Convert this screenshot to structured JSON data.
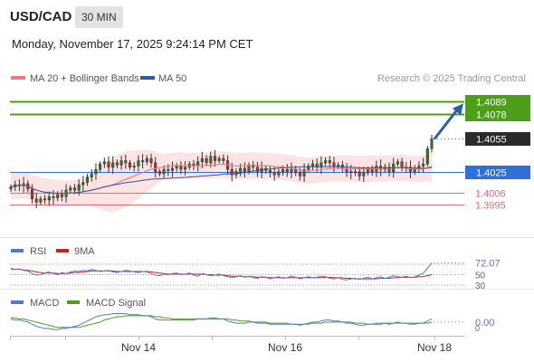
{
  "header": {
    "symbol": "USD/CAD",
    "timeframe": "30 MIN",
    "datetime": "Monday, November 17, 2025 9:24:14 PM CET"
  },
  "legend": {
    "ma20_label": "MA 20 + Bollinger Bands",
    "ma50_label": "MA 50",
    "credit": "Research © 2025 Trading Central"
  },
  "colors": {
    "resistance": "#4d9e1a",
    "pivot": "#2f6fd6",
    "support": "#e86a72",
    "current": "#2b2b2b",
    "arrow": "#2a5fa8",
    "candle_up": "#2a7a2a",
    "candle_down": "#c62828",
    "ma20": "#e88080",
    "ma50": "#2f5b9a",
    "rsi": "#5577cc",
    "rsi_ma": "#cc2020",
    "macd": "#5577cc",
    "macd_signal": "#4d9e1a"
  },
  "chart_data": [
    {
      "type": "candlestick",
      "ylim": [
        1.3975,
        1.4095
      ],
      "current_price": 1.4055,
      "levels": [
        {
          "value": 1.4089,
          "label": "1.4089",
          "kind": "resistance"
        },
        {
          "value": 1.4078,
          "label": "1.4078",
          "kind": "resistance"
        },
        {
          "value": 1.4025,
          "label": "1.4025",
          "kind": "pivot"
        },
        {
          "value": 1.4006,
          "label": "1.4006",
          "kind": "support"
        },
        {
          "value": 1.3995,
          "label": "1.3995",
          "kind": "support"
        }
      ],
      "current_label": "1.4055",
      "series": [
        {
          "name": "MA 20 + Bollinger Bands"
        },
        {
          "name": "MA 50"
        }
      ],
      "x_ticks": [
        "Nov 14",
        "Nov 16",
        "Nov 18"
      ],
      "closes": [
        1.4011,
        1.4013,
        1.4012,
        1.4014,
        1.4009,
        1.4,
        1.3997,
        1.4,
        1.3999,
        1.4002,
        1.4001,
        1.4004,
        1.4002,
        1.4008,
        1.401,
        1.4008,
        1.4013,
        1.4015,
        1.402,
        1.4023,
        1.4027,
        1.4032,
        1.4034,
        1.4029,
        1.4033,
        1.4031,
        1.4035,
        1.4033,
        1.4029,
        1.403,
        1.4035,
        1.4034,
        1.4037,
        1.4033,
        1.4025,
        1.4023,
        1.4027,
        1.4026,
        1.4028,
        1.403,
        1.4027,
        1.4029,
        1.4032,
        1.403,
        1.4034,
        1.4037,
        1.4033,
        1.4039,
        1.4035,
        1.4037,
        1.4035,
        1.4027,
        1.4022,
        1.4025,
        1.4028,
        1.4025,
        1.4031,
        1.4029,
        1.4025,
        1.4028,
        1.4026,
        1.4024,
        1.4022,
        1.4025,
        1.4027,
        1.4025,
        1.4027,
        1.4024,
        1.4021,
        1.4027,
        1.403,
        1.4032,
        1.4029,
        1.4033,
        1.4035,
        1.4033,
        1.403,
        1.4031,
        1.4028,
        1.4025,
        1.4024,
        1.4025,
        1.4021,
        1.4024,
        1.4027,
        1.4025,
        1.403,
        1.4027,
        1.4029,
        1.4025,
        1.4032,
        1.4034,
        1.4029,
        1.4029,
        1.4025,
        1.4028,
        1.403,
        1.4032,
        1.4046,
        1.4055
      ]
    },
    {
      "type": "line",
      "name": "RSI",
      "series": [
        {
          "name": "RSI"
        },
        {
          "name": "9MA"
        }
      ],
      "ylim": [
        25,
        80
      ],
      "ref_levels": [
        70,
        50,
        30
      ],
      "current_value": 72.07,
      "current_label": "72.07",
      "levels_labels": [
        "50",
        "30"
      ],
      "rsi": [
        62,
        60,
        61,
        58,
        57,
        52,
        49,
        50,
        53,
        55,
        52,
        50,
        54,
        52,
        55,
        57,
        56,
        58,
        57,
        60,
        58,
        56,
        57,
        58,
        55,
        54,
        56,
        58,
        57,
        55,
        54,
        56,
        55,
        52,
        49,
        48,
        51,
        50,
        52,
        53,
        50,
        51,
        53,
        49,
        47,
        52,
        50,
        48,
        49,
        51,
        48,
        46,
        44,
        46,
        48,
        45,
        47,
        44,
        43,
        46,
        45,
        42,
        44,
        46,
        43,
        44,
        47,
        45,
        42,
        44,
        46,
        44,
        45,
        47,
        46,
        43,
        42,
        44,
        41,
        40,
        42,
        43,
        41,
        43,
        45,
        42,
        44,
        46,
        43,
        45,
        48,
        46,
        45,
        47,
        44,
        46,
        49,
        53,
        62,
        72.07
      ],
      "rsi_ma": [
        60,
        60,
        60,
        59,
        58,
        57,
        55,
        54,
        53,
        53,
        53,
        52,
        52,
        52,
        53,
        54,
        54,
        55,
        56,
        57,
        57,
        57,
        57,
        57,
        57,
        56,
        56,
        56,
        56,
        56,
        56,
        56,
        56,
        55,
        54,
        53,
        52,
        51,
        51,
        51,
        51,
        51,
        51,
        51,
        51,
        51,
        50,
        50,
        49,
        49,
        49,
        48,
        47,
        47,
        47,
        46,
        46,
        46,
        45,
        45,
        45,
        44,
        44,
        44,
        44,
        44,
        44,
        44,
        44,
        44,
        44,
        44,
        44,
        44,
        45,
        45,
        44,
        44,
        44,
        43,
        43,
        42,
        42,
        42,
        42,
        42,
        42,
        43,
        43,
        43,
        44,
        44,
        45,
        45,
        45,
        45,
        46,
        46,
        48,
        50
      ]
    },
    {
      "type": "line",
      "name": "MACD",
      "series": [
        {
          "name": "MACD"
        },
        {
          "name": "MACD Signal"
        }
      ],
      "ylim": [
        -0.0012,
        0.0011
      ],
      "current_value": 0.0,
      "current_label": "0.00",
      "zero_label": "0",
      "macd": [
        0.0003,
        0.0002,
        0.0002,
        0.0001,
        0.0,
        -0.0002,
        -0.0004,
        -0.0005,
        -0.0006,
        -0.0006,
        -0.0007,
        -0.0007,
        -0.0006,
        -0.0006,
        -0.0005,
        -0.0004,
        -0.0003,
        -0.0001,
        0.0001,
        0.0003,
        0.0005,
        0.0006,
        0.0007,
        0.0007,
        0.0008,
        0.0008,
        0.0008,
        0.0008,
        0.0007,
        0.0007,
        0.0007,
        0.0006,
        0.0006,
        0.0005,
        0.0003,
        0.0002,
        0.0002,
        0.0002,
        0.0002,
        0.0002,
        0.0002,
        0.0002,
        0.0002,
        0.0002,
        0.0003,
        0.0003,
        0.0003,
        0.0004,
        0.0004,
        0.0003,
        0.0003,
        0.0001,
        0.0,
        -0.0001,
        -0.0001,
        -0.0001,
        0.0,
        0.0,
        -0.0001,
        -0.0001,
        -0.0001,
        -0.0002,
        -0.0002,
        -0.0002,
        -0.0002,
        -0.0002,
        -0.0002,
        -0.0002,
        -0.0003,
        -0.0002,
        -0.0001,
        0.0,
        0.0,
        0.0001,
        0.0002,
        0.0002,
        0.0001,
        0.0001,
        0.0,
        -0.0001,
        -0.0001,
        -0.0002,
        -0.0003,
        -0.0003,
        -0.0002,
        -0.0002,
        -0.0001,
        -0.0001,
        -0.0001,
        -0.0002,
        -0.0001,
        0.0,
        -0.0001,
        -0.0001,
        -0.0002,
        -0.0002,
        -0.0001,
        -0.0001,
        0.0001,
        0.0003
      ],
      "signal": [
        0.0004,
        0.0004,
        0.0003,
        0.0003,
        0.0002,
        0.0001,
        0.0,
        -0.0001,
        -0.0002,
        -0.0003,
        -0.0004,
        -0.0005,
        -0.0005,
        -0.0005,
        -0.0005,
        -0.0005,
        -0.0005,
        -0.0004,
        -0.0003,
        -0.0002,
        -0.0001,
        0.0,
        0.0002,
        0.0003,
        0.0004,
        0.0005,
        0.0005,
        0.0006,
        0.0006,
        0.0006,
        0.0006,
        0.0006,
        0.0006,
        0.0006,
        0.0005,
        0.0005,
        0.0004,
        0.0004,
        0.0003,
        0.0003,
        0.0003,
        0.0003,
        0.0003,
        0.0003,
        0.0003,
        0.0003,
        0.0003,
        0.0003,
        0.0003,
        0.0003,
        0.0003,
        0.0003,
        0.0002,
        0.0002,
        0.0001,
        0.0001,
        0.0001,
        0.0,
        0.0,
        0.0,
        0.0,
        -0.0001,
        -0.0001,
        -0.0001,
        -0.0001,
        -0.0001,
        -0.0002,
        -0.0002,
        -0.0002,
        -0.0002,
        -0.0002,
        -0.0001,
        -0.0001,
        -0.0001,
        0.0,
        0.0,
        0.0,
        0.0,
        0.0,
        0.0,
        0.0,
        -0.0001,
        -0.0001,
        -0.0001,
        -0.0002,
        -0.0002,
        -0.0002,
        -0.0002,
        -0.0001,
        -0.0001,
        -0.0001,
        -0.0001,
        -0.0001,
        -0.0001,
        -0.0001,
        -0.0001,
        -0.0001,
        -0.0001,
        -0.0001,
        0.0
      ]
    }
  ]
}
